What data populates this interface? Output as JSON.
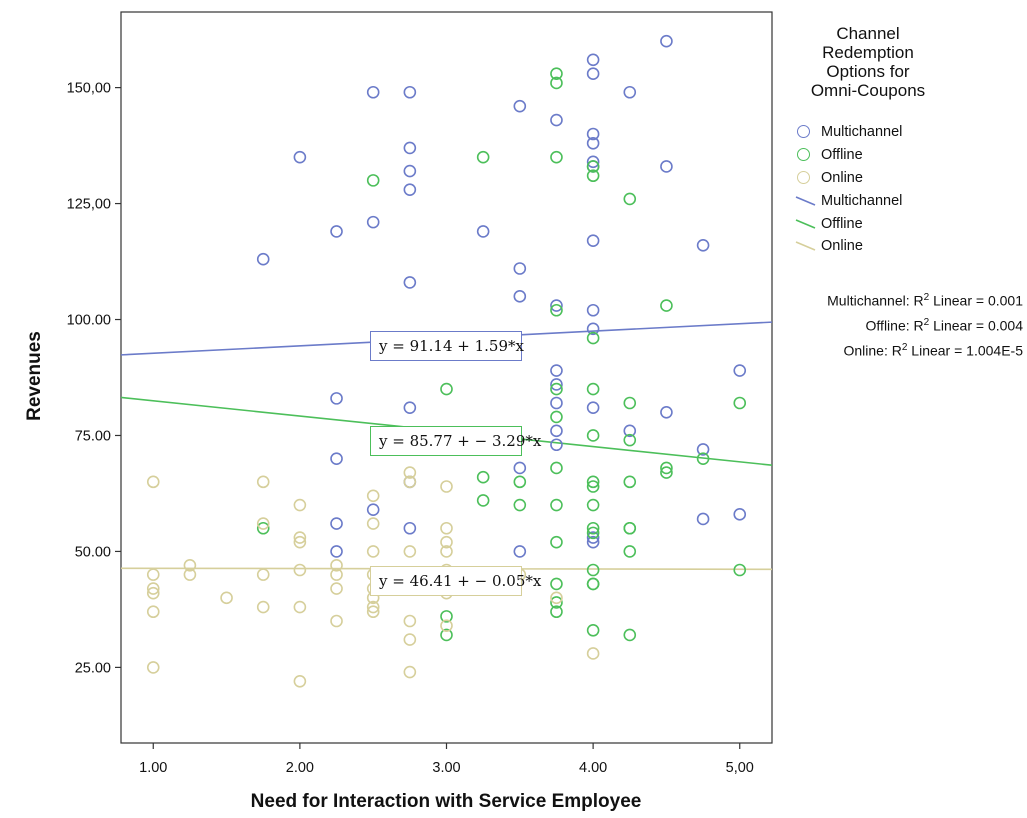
{
  "chart_data": {
    "type": "scatter",
    "xlabel": "Need for Interaction with Service Employee",
    "ylabel": "Revenues",
    "xlim": [
      0.78,
      5.22
    ],
    "ylim": [
      8.7,
      166.3
    ],
    "x_ticks": [
      "1.00",
      "2.00",
      "3.00",
      "4.00",
      "5,00"
    ],
    "x_tick_values": [
      1,
      2,
      3,
      4,
      5
    ],
    "y_ticks": [
      "25.00",
      "50.00",
      "75.00",
      "100.00",
      "125,00",
      "150,00"
    ],
    "y_tick_values": [
      25,
      50,
      75,
      100,
      125,
      150
    ],
    "legend": {
      "title_lines": [
        "Channel",
        "Redemption",
        "Options for",
        "Omni-Coupons"
      ],
      "marker_items": [
        {
          "label": "Multichannel",
          "color": "#6b7bc9"
        },
        {
          "label": "Offline",
          "color": "#4cbf5a"
        },
        {
          "label": "Online",
          "color": "#d6cf9b"
        }
      ],
      "line_items": [
        {
          "label": "Multichannel",
          "color": "#6b7bc9"
        },
        {
          "label": "Offline",
          "color": "#4cbf5a"
        },
        {
          "label": "Online",
          "color": "#d6cf9b"
        }
      ]
    },
    "r2_labels": [
      {
        "prefix": "Multichannel: R",
        "suffix": " Linear = 0.001"
      },
      {
        "prefix": "Offline: R",
        "suffix": " Linear =  0.004"
      },
      {
        "prefix": "Online: R",
        "suffix": " Linear = 1.004E-5"
      }
    ],
    "series": [
      {
        "name": "Multichannel",
        "color": "#6b7bc9",
        "fit": {
          "intercept": 91.14,
          "slope": 1.59,
          "equation": "y = 91.14 + 1.59*x"
        },
        "points": [
          [
            1.75,
            113
          ],
          [
            2,
            135
          ],
          [
            2.25,
            119
          ],
          [
            2.25,
            83
          ],
          [
            2.25,
            70
          ],
          [
            2.25,
            56
          ],
          [
            2.25,
            50
          ],
          [
            2.5,
            149
          ],
          [
            2.5,
            121
          ],
          [
            2.5,
            59
          ],
          [
            2.75,
            149
          ],
          [
            2.75,
            137
          ],
          [
            2.75,
            132
          ],
          [
            2.75,
            128
          ],
          [
            2.75,
            108
          ],
          [
            2.75,
            81
          ],
          [
            2.75,
            65
          ],
          [
            2.75,
            55
          ],
          [
            3.25,
            119
          ],
          [
            3.5,
            146
          ],
          [
            3.5,
            111
          ],
          [
            3.5,
            105
          ],
          [
            3.5,
            68
          ],
          [
            3.5,
            50
          ],
          [
            3.75,
            143
          ],
          [
            3.75,
            103
          ],
          [
            3.75,
            89
          ],
          [
            3.75,
            86
          ],
          [
            3.75,
            82
          ],
          [
            3.75,
            76
          ],
          [
            3.75,
            73
          ],
          [
            4,
            156
          ],
          [
            4,
            153
          ],
          [
            4,
            140
          ],
          [
            4,
            138
          ],
          [
            4,
            134
          ],
          [
            4,
            133
          ],
          [
            4,
            117
          ],
          [
            4,
            102
          ],
          [
            4,
            98
          ],
          [
            4,
            81
          ],
          [
            4,
            53
          ],
          [
            4,
            52
          ],
          [
            4.25,
            149
          ],
          [
            4.25,
            76
          ],
          [
            4.5,
            160
          ],
          [
            4.5,
            133
          ],
          [
            4.5,
            80
          ],
          [
            4.75,
            116
          ],
          [
            4.75,
            72
          ],
          [
            4.75,
            57
          ],
          [
            5,
            89
          ],
          [
            5,
            58
          ]
        ]
      },
      {
        "name": "Offline",
        "color": "#4cbf5a",
        "fit": {
          "intercept": 85.77,
          "slope": -3.29,
          "equation": "y = 85.77 + − 3.29*x"
        },
        "points": [
          [
            1.75,
            55
          ],
          [
            2.5,
            130
          ],
          [
            3,
            85
          ],
          [
            3,
            36
          ],
          [
            3,
            32
          ],
          [
            3.25,
            135
          ],
          [
            3.25,
            66
          ],
          [
            3.25,
            61
          ],
          [
            3.5,
            65
          ],
          [
            3.5,
            60
          ],
          [
            3.75,
            153
          ],
          [
            3.75,
            151
          ],
          [
            3.75,
            135
          ],
          [
            3.75,
            102
          ],
          [
            3.75,
            85
          ],
          [
            3.75,
            79
          ],
          [
            3.75,
            68
          ],
          [
            3.75,
            60
          ],
          [
            3.75,
            52
          ],
          [
            3.75,
            43
          ],
          [
            3.75,
            39
          ],
          [
            3.75,
            37
          ],
          [
            4,
            133
          ],
          [
            4,
            131
          ],
          [
            4,
            96
          ],
          [
            4,
            85
          ],
          [
            4,
            75
          ],
          [
            4,
            65
          ],
          [
            4,
            64
          ],
          [
            4,
            60
          ],
          [
            4,
            55
          ],
          [
            4,
            54
          ],
          [
            4,
            46
          ],
          [
            4,
            43
          ],
          [
            4,
            43
          ],
          [
            4,
            33
          ],
          [
            4.25,
            126
          ],
          [
            4.25,
            82
          ],
          [
            4.25,
            74
          ],
          [
            4.25,
            65
          ],
          [
            4.25,
            55
          ],
          [
            4.25,
            55
          ],
          [
            4.25,
            50
          ],
          [
            4.25,
            32
          ],
          [
            4.5,
            103
          ],
          [
            4.5,
            68
          ],
          [
            4.5,
            67
          ],
          [
            4.75,
            70
          ],
          [
            5,
            82
          ],
          [
            5,
            46
          ]
        ]
      },
      {
        "name": "Online",
        "color": "#d6cf9b",
        "fit": {
          "intercept": 46.41,
          "slope": -0.05,
          "equation": "y = 46.41 + − 0.05*x"
        },
        "points": [
          [
            1,
            65
          ],
          [
            1,
            45
          ],
          [
            1,
            42
          ],
          [
            1,
            41
          ],
          [
            1,
            37
          ],
          [
            1,
            25
          ],
          [
            1.25,
            47
          ],
          [
            1.25,
            45
          ],
          [
            1.5,
            40
          ],
          [
            1.75,
            65
          ],
          [
            1.75,
            56
          ],
          [
            1.75,
            45
          ],
          [
            1.75,
            38
          ],
          [
            2,
            60
          ],
          [
            2,
            53
          ],
          [
            2,
            52
          ],
          [
            2,
            46
          ],
          [
            2,
            38
          ],
          [
            2,
            22
          ],
          [
            2.25,
            47
          ],
          [
            2.25,
            45
          ],
          [
            2.25,
            42
          ],
          [
            2.25,
            35
          ],
          [
            2.5,
            62
          ],
          [
            2.5,
            56
          ],
          [
            2.5,
            50
          ],
          [
            2.5,
            45
          ],
          [
            2.5,
            42
          ],
          [
            2.5,
            40
          ],
          [
            2.5,
            38
          ],
          [
            2.5,
            37
          ],
          [
            2.75,
            67
          ],
          [
            2.75,
            65
          ],
          [
            2.75,
            50
          ],
          [
            2.75,
            45
          ],
          [
            2.75,
            42
          ],
          [
            2.75,
            35
          ],
          [
            2.75,
            31
          ],
          [
            2.75,
            24
          ],
          [
            3,
            64
          ],
          [
            3,
            55
          ],
          [
            3,
            52
          ],
          [
            3,
            50
          ],
          [
            3,
            46
          ],
          [
            3,
            42
          ],
          [
            3,
            41
          ],
          [
            3,
            34
          ],
          [
            3.5,
            45
          ],
          [
            3.75,
            40
          ],
          [
            4,
            28
          ]
        ]
      }
    ]
  }
}
